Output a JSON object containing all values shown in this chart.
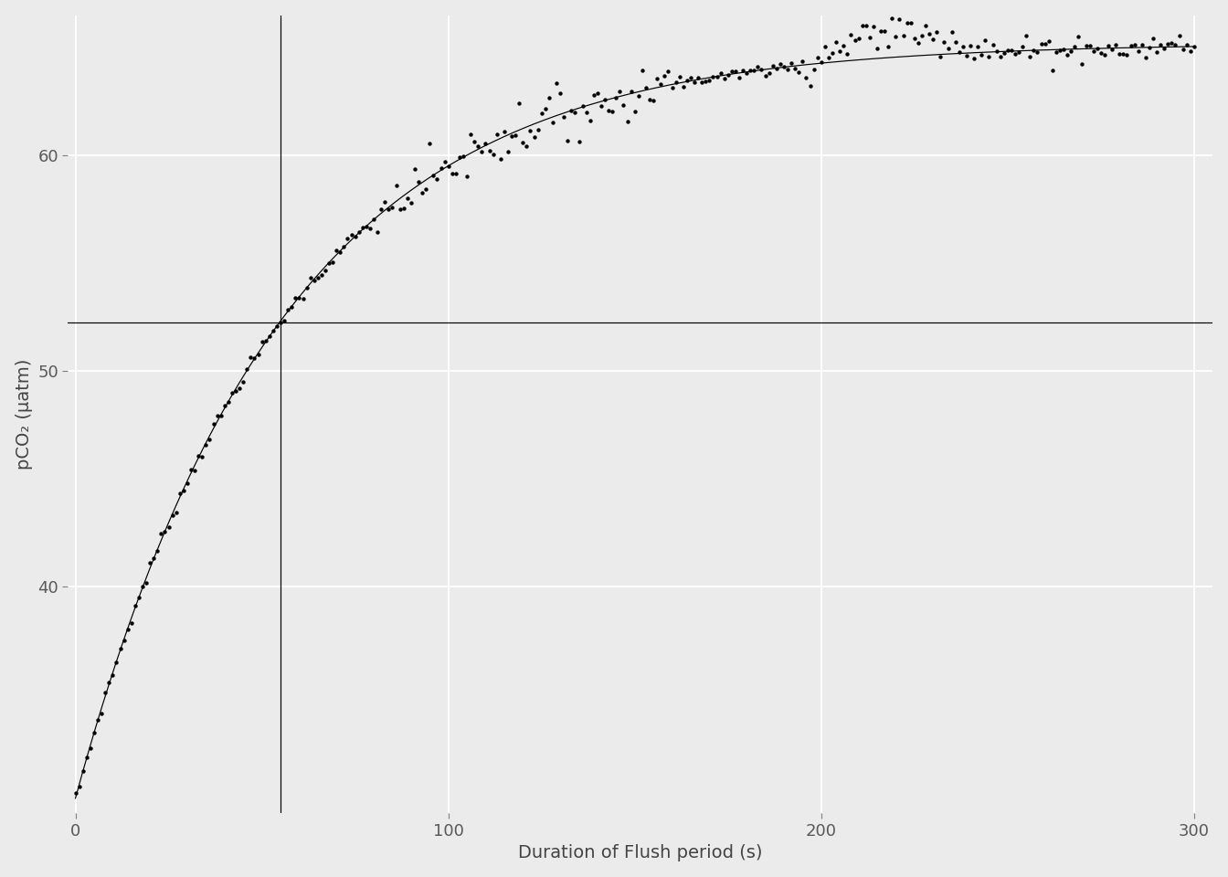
{
  "title": "",
  "xlabel": "Duration of Flush period (s)",
  "ylabel": "pCO₂ (µatm)",
  "xlim": [
    -2,
    305
  ],
  "ylim": [
    29.5,
    66.5
  ],
  "yticks": [
    40,
    50,
    60
  ],
  "xticks": [
    0,
    100,
    200,
    300
  ],
  "tau": 55.0,
  "hline_y": 52.9,
  "pco2_start": 30.2,
  "pco2_final": 65.2,
  "noise_seed": 7,
  "background_color": "#ebebeb",
  "grid_color": "#ffffff",
  "point_color": "#000000",
  "line_color": "#000000",
  "vline_color": "#000000",
  "hline_color": "#000000",
  "point_size": 10,
  "line_width": 0.85,
  "xlabel_fontsize": 14,
  "ylabel_fontsize": 14,
  "tick_fontsize": 13
}
